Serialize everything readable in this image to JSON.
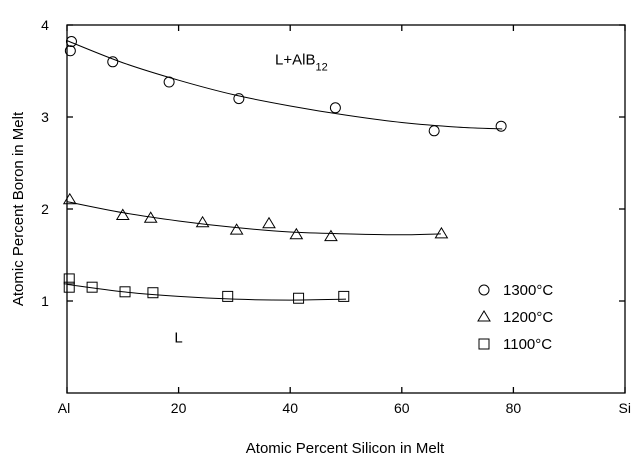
{
  "chart_data": {
    "type": "scatter",
    "xlabel": "Atomic Percent  Silicon in Melt",
    "ylabel": "Atomic Percent  Boron in Melt",
    "xlim": [
      0,
      100
    ],
    "ylim": [
      0,
      4
    ],
    "x_ticks": [
      {
        "value": 0,
        "label": "Al"
      },
      {
        "value": 20,
        "label": "20"
      },
      {
        "value": 40,
        "label": "40"
      },
      {
        "value": 60,
        "label": "60"
      },
      {
        "value": 80,
        "label": "80"
      },
      {
        "value": 100,
        "label": "Si"
      }
    ],
    "y_ticks": [
      {
        "value": 1,
        "label": "1"
      },
      {
        "value": 2,
        "label": "2"
      },
      {
        "value": 3,
        "label": "3"
      },
      {
        "value": 4,
        "label": "4"
      }
    ],
    "grid": false,
    "legend_position": "bottom-right",
    "annotations": [
      {
        "text": "L+AlB",
        "subscript": "12",
        "x": 42,
        "y": 3.57
      },
      {
        "text": "L",
        "x": 20,
        "y": 0.55
      }
    ],
    "series": [
      {
        "name": "1300°C",
        "marker": "circle",
        "x": [
          0.8,
          0.6,
          8.2,
          18.3,
          30.8,
          48.1,
          65.8,
          77.8
        ],
        "y": [
          3.82,
          3.72,
          3.6,
          3.38,
          3.2,
          3.1,
          2.85,
          2.9
        ],
        "fit_x": [
          0,
          10,
          20,
          30,
          40,
          50,
          60,
          70,
          78
        ],
        "fit_y": [
          3.83,
          3.59,
          3.4,
          3.24,
          3.12,
          3.02,
          2.94,
          2.89,
          2.87
        ]
      },
      {
        "name": "1200°C",
        "marker": "triangle",
        "x": [
          0.5,
          10,
          15,
          24.3,
          30.4,
          36.2,
          41.1,
          47.3,
          67.1
        ],
        "y": [
          2.1,
          1.93,
          1.9,
          1.85,
          1.77,
          1.84,
          1.72,
          1.7,
          1.73
        ],
        "fit_x": [
          0,
          10,
          20,
          30,
          40,
          50,
          60,
          67
        ],
        "fit_y": [
          2.08,
          1.96,
          1.87,
          1.8,
          1.75,
          1.73,
          1.72,
          1.73
        ]
      },
      {
        "name": "1100°C",
        "marker": "square",
        "x": [
          0.4,
          0.4,
          4.5,
          10.4,
          15.4,
          28.8,
          41.5,
          49.6
        ],
        "y": [
          1.24,
          1.15,
          1.15,
          1.1,
          1.09,
          1.05,
          1.03,
          1.05
        ],
        "fit_x": [
          0,
          10,
          20,
          30,
          40,
          50
        ],
        "fit_y": [
          1.18,
          1.1,
          1.05,
          1.02,
          1.01,
          1.02
        ]
      }
    ]
  }
}
